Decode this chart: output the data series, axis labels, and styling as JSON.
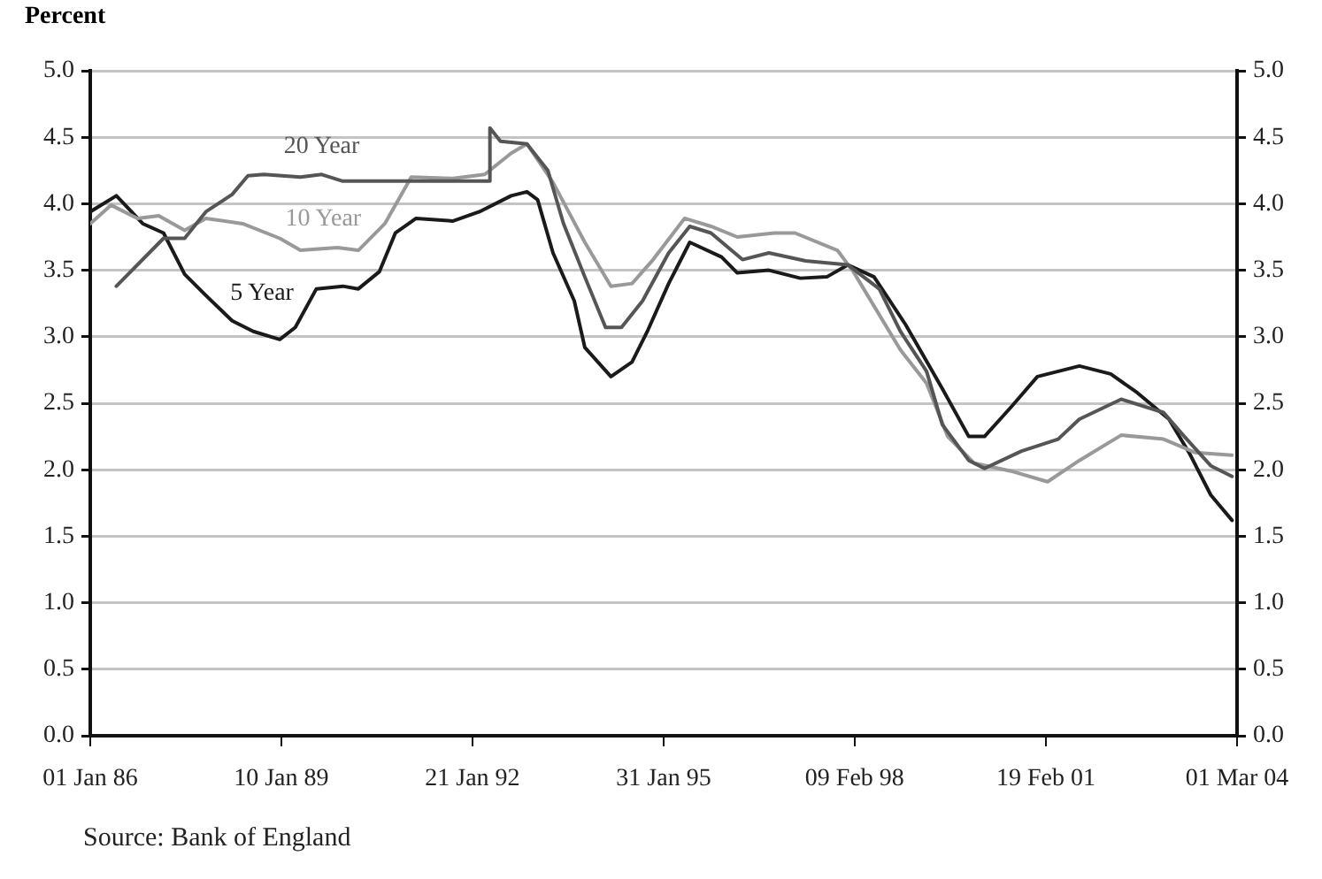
{
  "chart_data": {
    "type": "line",
    "ylabel": "Percent",
    "annotations": [
      "Source: Bank of England"
    ],
    "series": [
      {
        "name": "20 Year",
        "color": "#555555",
        "x": [
          "1986-06",
          "1987-03",
          "1987-07",
          "1987-11",
          "1988-04",
          "1988-07",
          "1988-10",
          "1989-05",
          "1989-09",
          "1990-01",
          "1992-05",
          "1992-05",
          "1992-07",
          "1992-12",
          "1993-04",
          "1993-07",
          "1993-11",
          "1994-03",
          "1994-06",
          "1994-10",
          "1995-03",
          "1995-07",
          "1995-11",
          "1996-05",
          "1996-10",
          "1997-05",
          "1998-01",
          "1998-07",
          "1998-11",
          "1999-04",
          "1999-07",
          "1999-12",
          "2000-03",
          "2000-10",
          "2001-05",
          "2001-09",
          "2002-05",
          "2003-01",
          "2003-05",
          "2003-10",
          "2004-02"
        ],
        "values": [
          3.38,
          3.74,
          3.74,
          3.94,
          4.07,
          4.21,
          4.22,
          4.2,
          4.22,
          4.17,
          4.17,
          4.57,
          4.47,
          4.45,
          4.25,
          3.85,
          3.45,
          3.07,
          3.07,
          3.27,
          3.63,
          3.83,
          3.78,
          3.58,
          3.63,
          3.57,
          3.54,
          3.36,
          3.04,
          2.74,
          2.34,
          2.07,
          2.01,
          2.14,
          2.23,
          2.38,
          2.53,
          2.43,
          2.25,
          2.03,
          1.95
        ]
      },
      {
        "name": "10 Year",
        "color": "#999999",
        "x": [
          "1986-01",
          "1986-05",
          "1986-10",
          "1987-02",
          "1987-07",
          "1987-11",
          "1988-06",
          "1989-01",
          "1989-05",
          "1989-12",
          "1990-04",
          "1990-09",
          "1991-02",
          "1991-10",
          "1992-04",
          "1992-09",
          "1992-12",
          "1993-05",
          "1993-11",
          "1994-04",
          "1994-08",
          "1994-12",
          "1995-06",
          "1995-11",
          "1996-04",
          "1996-11",
          "1997-03",
          "1997-11",
          "1998-02",
          "1998-11",
          "1999-04",
          "1999-08",
          "2000-01",
          "2000-08",
          "2001-03",
          "2001-09",
          "2002-05",
          "2003-01",
          "2003-07",
          "2004-02"
        ],
        "values": [
          3.85,
          3.99,
          3.89,
          3.91,
          3.8,
          3.89,
          3.85,
          3.74,
          3.65,
          3.67,
          3.65,
          3.85,
          4.2,
          4.19,
          4.22,
          4.38,
          4.45,
          4.16,
          3.71,
          3.38,
          3.4,
          3.58,
          3.89,
          3.83,
          3.75,
          3.78,
          3.78,
          3.65,
          3.49,
          2.9,
          2.65,
          2.25,
          2.05,
          1.99,
          1.91,
          2.07,
          2.26,
          2.23,
          2.13,
          2.11
        ]
      },
      {
        "name": "5 Year",
        "color": "#1a1a1a",
        "x": [
          "1986-01",
          "1986-06",
          "1986-11",
          "1987-03",
          "1987-07",
          "1987-11",
          "1988-04",
          "1988-08",
          "1989-01",
          "1989-04",
          "1989-08",
          "1990-01",
          "1990-04",
          "1990-08",
          "1990-11",
          "1991-03",
          "1991-10",
          "1992-03",
          "1992-09",
          "1992-12",
          "1993-02",
          "1993-05",
          "1993-09",
          "1993-11",
          "1994-04",
          "1994-08",
          "1994-11",
          "1995-03",
          "1995-07",
          "1996-01",
          "1996-04",
          "1996-10",
          "1997-04",
          "1997-09",
          "1998-01",
          "1998-06",
          "1998-12",
          "1999-07",
          "1999-12",
          "2000-03",
          "2000-08",
          "2001-01",
          "2001-09",
          "2002-03",
          "2002-08",
          "2003-02",
          "2003-06",
          "2003-10",
          "2004-02"
        ],
        "values": [
          3.94,
          4.06,
          3.85,
          3.78,
          3.47,
          3.31,
          3.12,
          3.04,
          2.98,
          3.07,
          3.36,
          3.38,
          3.36,
          3.49,
          3.78,
          3.89,
          3.87,
          3.94,
          4.06,
          4.09,
          4.03,
          3.63,
          3.27,
          2.92,
          2.7,
          2.81,
          3.05,
          3.4,
          3.71,
          3.6,
          3.48,
          3.5,
          3.44,
          3.45,
          3.54,
          3.45,
          3.09,
          2.61,
          2.25,
          2.25,
          2.47,
          2.7,
          2.78,
          2.72,
          2.58,
          2.38,
          2.12,
          1.81,
          1.62
        ]
      }
    ],
    "xlim": [
      "1986-01-01",
      "2004-03-01"
    ],
    "xticks": [
      {
        "value": "1986-01-01",
        "label": "01 Jan 86"
      },
      {
        "value": "1989-01-10",
        "label": "10 Jan 89"
      },
      {
        "value": "1992-01-21",
        "label": "21 Jan 92"
      },
      {
        "value": "1995-01-31",
        "label": "31 Jan 95"
      },
      {
        "value": "1998-02-09",
        "label": "09 Feb 98"
      },
      {
        "value": "2001-02-19",
        "label": "19 Feb 01"
      },
      {
        "value": "2004-03-01",
        "label": "01 Mar 04"
      }
    ],
    "ylim": [
      0,
      5
    ],
    "yticks": [
      {
        "value": 0,
        "label": "0.0"
      },
      {
        "value": 0.5,
        "label": "0.5"
      },
      {
        "value": 1,
        "label": "1.0"
      },
      {
        "value": 1.5,
        "label": "1.5"
      },
      {
        "value": 2,
        "label": "2.0"
      },
      {
        "value": 2.5,
        "label": "2.5"
      },
      {
        "value": 3,
        "label": "3.0"
      },
      {
        "value": 3.5,
        "label": "3.5"
      },
      {
        "value": 4,
        "label": "4.0"
      },
      {
        "value": 4.5,
        "label": "4.5"
      },
      {
        "value": 5,
        "label": "5.0"
      }
    ],
    "y2lim": [
      0,
      5
    ],
    "y2ticks": [
      {
        "value": 0,
        "label": "0.0"
      },
      {
        "value": 0.5,
        "label": "0.5"
      },
      {
        "value": 1,
        "label": "1.0"
      },
      {
        "value": 1.5,
        "label": "1.5"
      },
      {
        "value": 2,
        "label": "2.0"
      },
      {
        "value": 2.5,
        "label": "2.5"
      },
      {
        "value": 3,
        "label": "3.0"
      },
      {
        "value": 3.5,
        "label": "3.5"
      },
      {
        "value": 4,
        "label": "4.0"
      },
      {
        "value": 4.5,
        "label": "4.5"
      },
      {
        "value": 5,
        "label": "5.0"
      }
    ],
    "grid": "y",
    "legend": false,
    "marker": "none",
    "line_style": "solid"
  }
}
